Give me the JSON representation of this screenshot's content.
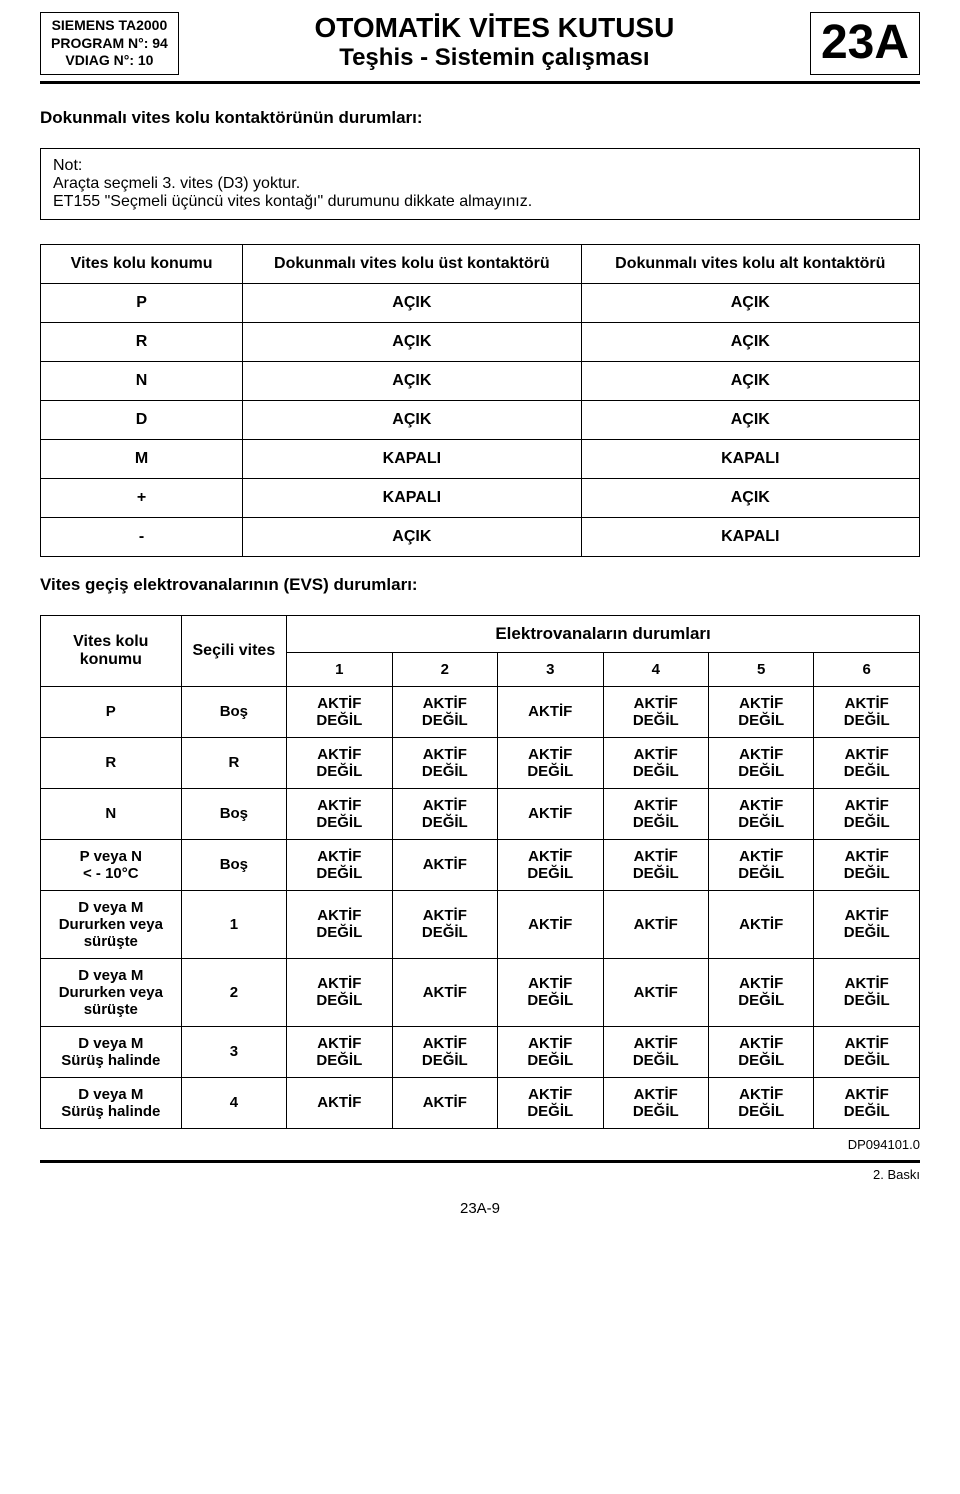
{
  "header": {
    "meta_line1": "SIEMENS TA2000",
    "meta_line2": "PROGRAM N°: 94",
    "meta_line3": "VDIAG N°: 10",
    "title1": "OTOMATİK VİTES KUTUSU",
    "title2": "Teşhis - Sistemin çalışması",
    "code": "23A"
  },
  "section1": {
    "heading": "Dokunmalı vites kolu kontaktörünün durumları:",
    "note_l1": "Not:",
    "note_l2": "Araçta seçmeli 3. vites (D3) yoktur.",
    "note_l3": "ET155 \"Seçmeli üçüncü vites kontağı\" durumunu dikkate almayınız.",
    "columns": [
      "Vites kolu konumu",
      "Dokunmalı vites kolu üst kontaktörü",
      "Dokunmalı vites kolu alt kontaktörü"
    ],
    "rows": [
      [
        "P",
        "AÇIK",
        "AÇIK"
      ],
      [
        "R",
        "AÇIK",
        "AÇIK"
      ],
      [
        "N",
        "AÇIK",
        "AÇIK"
      ],
      [
        "D",
        "AÇIK",
        "AÇIK"
      ],
      [
        "M",
        "KAPALI",
        "KAPALI"
      ],
      [
        "+",
        "KAPALI",
        "AÇIK"
      ],
      [
        "-",
        "AÇIK",
        "KAPALI"
      ]
    ]
  },
  "section2": {
    "heading": "Vites geçiş elektrovanalarının (EVS) durumları:",
    "head_col0": "Vites kolu\nkonumu",
    "head_col1": "Seçili vites",
    "super_head": "Elektrovanaların durumları",
    "num_cols": [
      "1",
      "2",
      "3",
      "4",
      "5",
      "6"
    ],
    "rows": [
      {
        "c0": "P",
        "c1": "Boş",
        "v": [
          "AKTİF\nDEĞİL",
          "AKTİF\nDEĞİL",
          "AKTİF",
          "AKTİF\nDEĞİL",
          "AKTİF\nDEĞİL",
          "AKTİF\nDEĞİL"
        ]
      },
      {
        "c0": "R",
        "c1": "R",
        "v": [
          "AKTİF\nDEĞİL",
          "AKTİF\nDEĞİL",
          "AKTİF\nDEĞİL",
          "AKTİF\nDEĞİL",
          "AKTİF\nDEĞİL",
          "AKTİF\nDEĞİL"
        ]
      },
      {
        "c0": "N",
        "c1": "Boş",
        "v": [
          "AKTİF\nDEĞİL",
          "AKTİF\nDEĞİL",
          "AKTİF",
          "AKTİF\nDEĞİL",
          "AKTİF\nDEĞİL",
          "AKTİF\nDEĞİL"
        ]
      },
      {
        "c0": "P veya N\n< - 10°C",
        "c1": "Boş",
        "v": [
          "AKTİF\nDEĞİL",
          "AKTİF",
          "AKTİF\nDEĞİL",
          "AKTİF\nDEĞİL",
          "AKTİF\nDEĞİL",
          "AKTİF\nDEĞİL"
        ]
      },
      {
        "c0": "D veya M\nDururken veya\nsürüşte",
        "c1": "1",
        "v": [
          "AKTİF\nDEĞİL",
          "AKTİF\nDEĞİL",
          "AKTİF",
          "AKTİF",
          "AKTİF",
          "AKTİF\nDEĞİL"
        ]
      },
      {
        "c0": "D veya M\nDururken veya\nsürüşte",
        "c1": "2",
        "v": [
          "AKTİF\nDEĞİL",
          "AKTİF",
          "AKTİF\nDEĞİL",
          "AKTİF",
          "AKTİF\nDEĞİL",
          "AKTİF\nDEĞİL"
        ]
      },
      {
        "c0": "D veya M\nSürüş halinde",
        "c1": "3",
        "v": [
          "AKTİF\nDEĞİL",
          "AKTİF\nDEĞİL",
          "AKTİF\nDEĞİL",
          "AKTİF\nDEĞİL",
          "AKTİF\nDEĞİL",
          "AKTİF\nDEĞİL"
        ]
      },
      {
        "c0": "D veya M\nSürüş halinde",
        "c1": "4",
        "v": [
          "AKTİF",
          "AKTİF",
          "AKTİF\nDEĞİL",
          "AKTİF\nDEĞİL",
          "AKTİF\nDEĞİL",
          "AKTİF\nDEĞİL"
        ]
      }
    ]
  },
  "footer": {
    "page_num": "23A-9",
    "doc_ref": "DP094101.0",
    "print": "2. Baskı"
  }
}
